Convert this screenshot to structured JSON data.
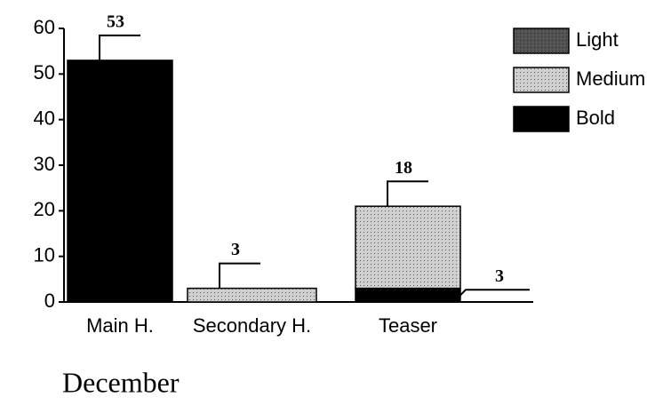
{
  "chart_data": {
    "type": "stacked_bar",
    "subtitle": "December",
    "categories": [
      "Main H.",
      "Secondary H.",
      "Teaser"
    ],
    "series": [
      {
        "name": "Light",
        "color": "#555555",
        "values": [
          0,
          0,
          0
        ]
      },
      {
        "name": "Medium",
        "color": "#d0d0d0",
        "values": [
          0,
          3,
          18
        ]
      },
      {
        "name": "Bold",
        "color": "#000000",
        "values": [
          53,
          0,
          3
        ]
      }
    ],
    "stack_order": [
      "Bold",
      "Medium",
      "Light"
    ],
    "ylim": [
      0,
      60
    ],
    "yticks": [
      0,
      10,
      20,
      30,
      40,
      50,
      60
    ],
    "legend": "upper right",
    "grid": false
  }
}
